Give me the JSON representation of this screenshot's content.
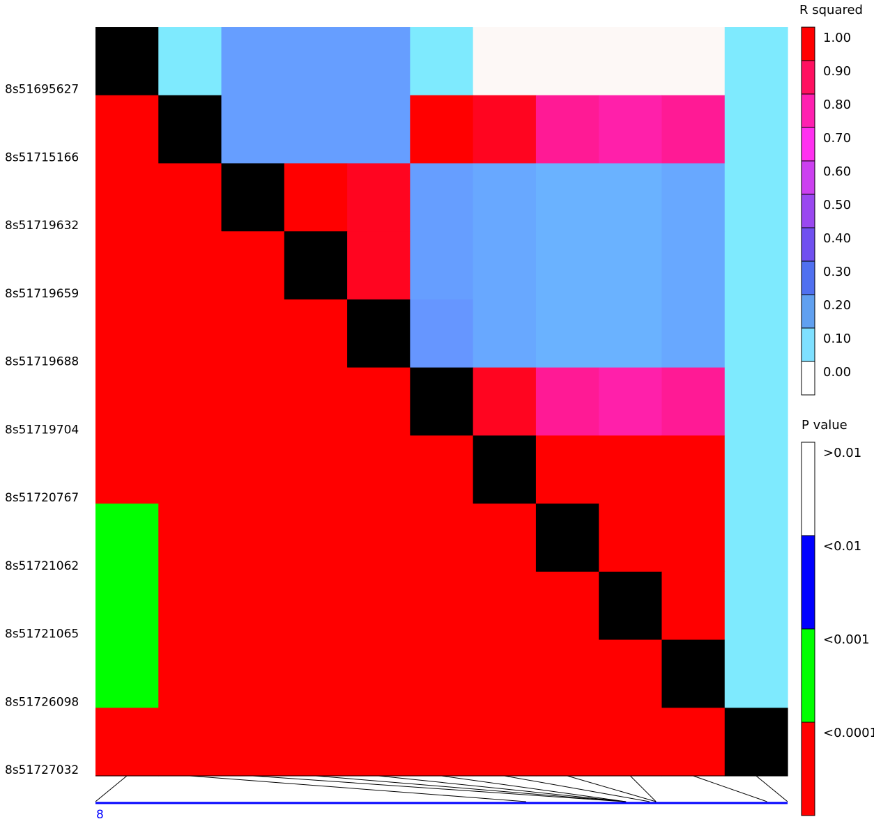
{
  "chart_data": {
    "type": "heatmap",
    "markers": [
      "8s51695627",
      "8s51715166",
      "8s51719632",
      "8s51719659",
      "8s51719688",
      "8s51719704",
      "8s51720767",
      "8s51721062",
      "8s51721065",
      "8s51726098",
      "8s51727032"
    ],
    "upper_triangle_metric": "R squared",
    "lower_triangle_metric": "P value",
    "r_squared_upper": [
      [
        null,
        0.08,
        0.25,
        0.25,
        0.24,
        0.08,
        0.0,
        0.0,
        0.0,
        0.0,
        0.07
      ],
      [
        null,
        null,
        0.25,
        0.25,
        0.24,
        1.0,
        0.95,
        0.85,
        0.82,
        0.85,
        0.07
      ],
      [
        null,
        null,
        null,
        1.0,
        0.97,
        0.24,
        0.2,
        0.18,
        0.18,
        0.19,
        0.07
      ],
      [
        null,
        null,
        null,
        null,
        0.97,
        0.25,
        0.2,
        0.18,
        0.18,
        0.19,
        0.07
      ],
      [
        null,
        null,
        null,
        null,
        null,
        0.28,
        0.2,
        0.18,
        0.17,
        0.19,
        0.07
      ],
      [
        null,
        null,
        null,
        null,
        null,
        null,
        0.95,
        0.85,
        0.82,
        0.85,
        0.07
      ],
      [
        null,
        null,
        null,
        null,
        null,
        null,
        null,
        1.0,
        1.0,
        1.0,
        0.07
      ],
      [
        null,
        null,
        null,
        null,
        null,
        null,
        null,
        null,
        1.0,
        1.0,
        0.07
      ],
      [
        null,
        null,
        null,
        null,
        null,
        null,
        null,
        null,
        null,
        1.0,
        0.07
      ],
      [
        null,
        null,
        null,
        null,
        null,
        null,
        null,
        null,
        null,
        null,
        0.07
      ],
      [
        null,
        null,
        null,
        null,
        null,
        null,
        null,
        null,
        null,
        null,
        null
      ]
    ],
    "p_value_lower": [
      [
        null,
        null,
        null,
        null,
        null,
        null,
        null,
        null,
        null,
        null,
        null
      ],
      [
        "<0.0001",
        null,
        null,
        null,
        null,
        null,
        null,
        null,
        null,
        null,
        null
      ],
      [
        "<0.0001",
        "<0.0001",
        null,
        null,
        null,
        null,
        null,
        null,
        null,
        null,
        null
      ],
      [
        "<0.0001",
        "<0.0001",
        "<0.0001",
        null,
        null,
        null,
        null,
        null,
        null,
        null,
        null
      ],
      [
        "<0.0001",
        "<0.0001",
        "<0.0001",
        "<0.0001",
        null,
        null,
        null,
        null,
        null,
        null,
        null
      ],
      [
        "<0.0001",
        "<0.0001",
        "<0.0001",
        "<0.0001",
        "<0.0001",
        null,
        null,
        null,
        null,
        null,
        null
      ],
      [
        "<0.0001",
        "<0.0001",
        "<0.0001",
        "<0.0001",
        "<0.0001",
        "<0.0001",
        null,
        null,
        null,
        null,
        null
      ],
      [
        "<0.001",
        "<0.0001",
        "<0.0001",
        "<0.0001",
        "<0.0001",
        "<0.0001",
        "<0.0001",
        null,
        null,
        null,
        null
      ],
      [
        "<0.001",
        "<0.0001",
        "<0.0001",
        "<0.0001",
        "<0.0001",
        "<0.0001",
        "<0.0001",
        "<0.0001",
        null,
        null,
        null
      ],
      [
        "<0.001",
        "<0.0001",
        "<0.0001",
        "<0.0001",
        "<0.0001",
        "<0.0001",
        "<0.0001",
        "<0.0001",
        "<0.0001",
        null,
        null
      ],
      [
        "<0.0001",
        "<0.0001",
        "<0.0001",
        "<0.0001",
        "<0.0001",
        "<0.0001",
        "<0.0001",
        "<0.0001",
        "<0.0001",
        "<0.0001",
        null
      ]
    ],
    "diagonal_color": "#000000",
    "r_squared_legend": {
      "title": "R squared",
      "ticks": [
        "1.00",
        "0.90",
        "0.80",
        "0.70",
        "0.60",
        "0.50",
        "0.40",
        "0.30",
        "0.20",
        "0.10",
        "0.00"
      ],
      "colors": [
        "#ff0000",
        "#ff1060",
        "#ff20b0",
        "#ff30f0",
        "#cc40f0",
        "#9a48f0",
        "#7050f0",
        "#5070f0",
        "#60a0f0",
        "#7ee0ff",
        "#ffffff"
      ]
    },
    "p_value_legend": {
      "title": "P value",
      "labels": [
        ">0.01",
        "<0.01",
        "<0.001",
        "<0.0001"
      ],
      "colors": [
        "#ffffff",
        "#0000ff",
        "#00ff00",
        "#ff0000"
      ]
    },
    "chromosome_label": "8",
    "chromosome_color": "#0000ff",
    "positions": [
      51695627,
      51715166,
      51719632,
      51719659,
      51719688,
      51719704,
      51720767,
      51721062,
      51721065,
      51726098,
      51727032
    ]
  }
}
